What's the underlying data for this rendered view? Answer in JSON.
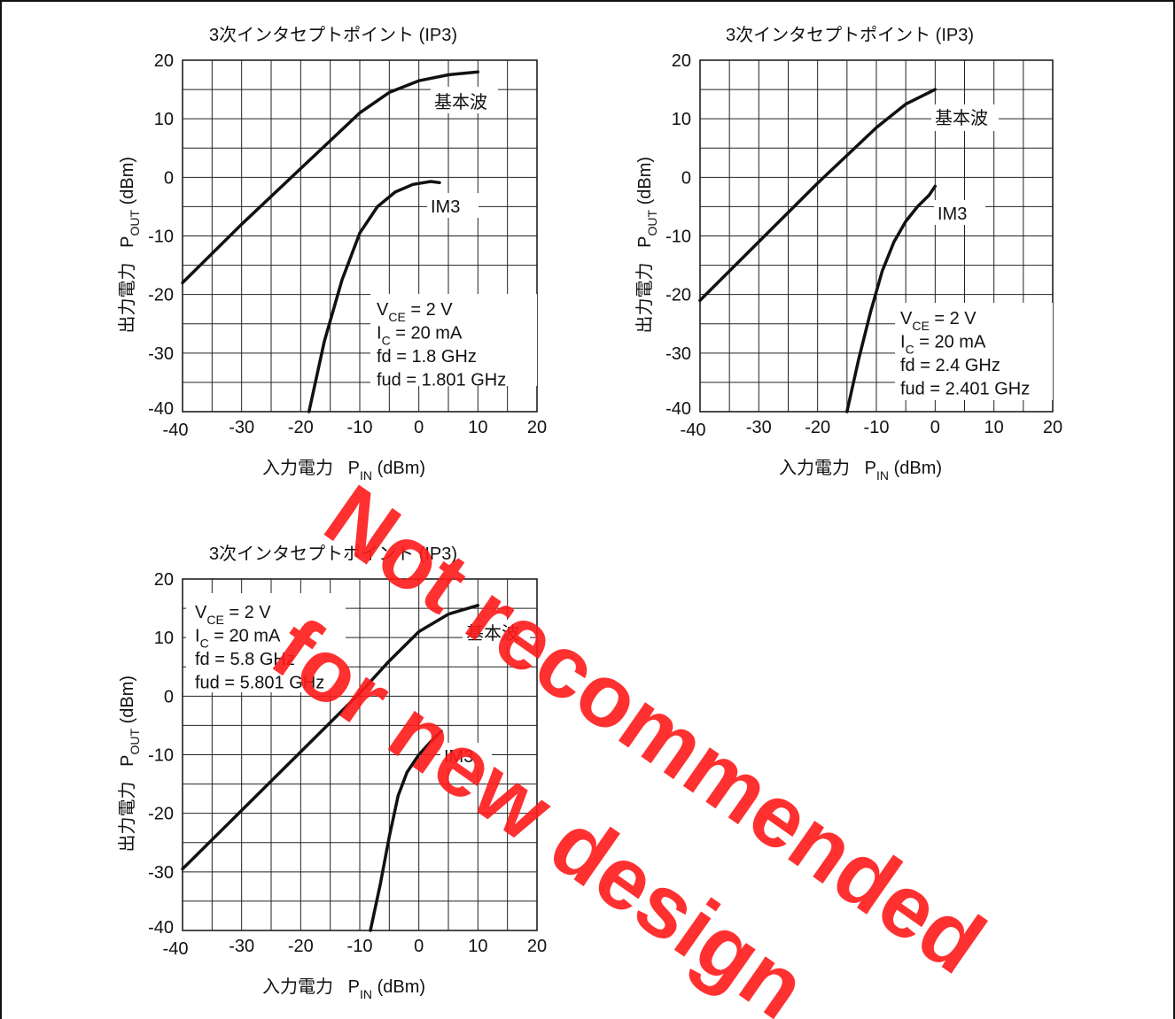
{
  "chart_data": [
    {
      "type": "line",
      "title": "3次インタセプトポイント (IP3)",
      "xlabel_main": "入力電力",
      "xlabel_sym": "P",
      "xlabel_sub": "IN",
      "xlabel_unit": "(dBm)",
      "ylabel_main": "出力電力",
      "ylabel_sym": "P",
      "ylabel_sub": "OUT",
      "ylabel_unit": "(dBm)",
      "xlim": [
        -40,
        20
      ],
      "ylim": [
        -40,
        20
      ],
      "xticks": [
        "-40",
        "-30",
        "-20",
        "-10",
        "0",
        "10",
        "20"
      ],
      "yticks": [
        "20",
        "10",
        "0",
        "-10",
        "-20",
        "-30",
        "-40"
      ],
      "grid": true,
      "series": [
        {
          "name": "基本波",
          "x": [
            -40,
            -30,
            -20,
            -10,
            -5,
            0,
            5,
            10
          ],
          "y": [
            -18,
            -8,
            1.5,
            11,
            14.5,
            16.5,
            17.5,
            18
          ]
        },
        {
          "name": "IM3",
          "x": [
            -18.6,
            -16,
            -13,
            -10,
            -7,
            -4,
            -1,
            2,
            3.5
          ],
          "y": [
            -40,
            -28,
            -17.5,
            -9.5,
            -5,
            -2.5,
            -1.2,
            -0.7,
            -0.9
          ]
        }
      ],
      "annotations": [
        {
          "sym": "V",
          "sub": "CE",
          "rest": " = 2 V"
        },
        {
          "sym": "I",
          "sub": "C",
          "rest": " = 20 mA"
        },
        {
          "sym": "fd = 1.8 GHz",
          "sub": "",
          "rest": ""
        },
        {
          "sym": "fud = 1.801 GHz",
          "sub": "",
          "rest": ""
        }
      ]
    },
    {
      "type": "line",
      "title": "3次インタセプトポイント (IP3)",
      "xlabel_main": "入力電力",
      "xlabel_sym": "P",
      "xlabel_sub": "IN",
      "xlabel_unit": "(dBm)",
      "ylabel_main": "出力電力",
      "ylabel_sym": "P",
      "ylabel_sub": "OUT",
      "ylabel_unit": "(dBm)",
      "xlim": [
        -40,
        20
      ],
      "ylim": [
        -40,
        20
      ],
      "xticks": [
        "-40",
        "-30",
        "-20",
        "-10",
        "0",
        "10",
        "20"
      ],
      "yticks": [
        "20",
        "10",
        "0",
        "-10",
        "-20",
        "-30",
        "-40"
      ],
      "grid": true,
      "series": [
        {
          "name": "基本波",
          "x": [
            -40,
            -30,
            -20,
            -10,
            -5,
            0
          ],
          "y": [
            -21,
            -11,
            -1,
            8.5,
            12.5,
            15
          ]
        },
        {
          "name": "IM3",
          "x": [
            -15,
            -13,
            -11,
            -9,
            -7,
            -5,
            -3,
            -1,
            0
          ],
          "y": [
            -40,
            -31,
            -23,
            -16,
            -11,
            -7.5,
            -5,
            -3,
            -1.5
          ]
        }
      ],
      "annotations": [
        {
          "sym": "V",
          "sub": "CE",
          "rest": " = 2 V"
        },
        {
          "sym": "I",
          "sub": "C",
          "rest": " = 20 mA"
        },
        {
          "sym": "fd = 2.4 GHz",
          "sub": "",
          "rest": ""
        },
        {
          "sym": "fud = 2.401 GHz",
          "sub": "",
          "rest": ""
        }
      ]
    },
    {
      "type": "line",
      "title": "3次インタセプトポイント (IP3)",
      "xlabel_main": "入力電力",
      "xlabel_sym": "P",
      "xlabel_sub": "IN",
      "xlabel_unit": "(dBm)",
      "ylabel_main": "出力電力",
      "ylabel_sym": "P",
      "ylabel_sub": "OUT",
      "ylabel_unit": "(dBm)",
      "xlim": [
        -40,
        20
      ],
      "ylim": [
        -40,
        20
      ],
      "xticks": [
        "-40",
        "-30",
        "-20",
        "-10",
        "0",
        "10",
        "20"
      ],
      "yticks": [
        "20",
        "10",
        "0",
        "-10",
        "-20",
        "-30",
        "-40"
      ],
      "grid": true,
      "series": [
        {
          "name": "基本波",
          "x": [
            -40,
            -30,
            -20,
            -10,
            -5,
            0,
            5,
            10
          ],
          "y": [
            -29.5,
            -19.5,
            -9.5,
            0.5,
            6,
            11,
            14,
            15.5
          ]
        },
        {
          "name": "IM3",
          "x": [
            -8.2,
            -6.5,
            -5,
            -3.5,
            -2,
            0,
            2,
            3.8
          ],
          "y": [
            -40,
            -32,
            -24,
            -17,
            -13,
            -10,
            -7.8,
            -6
          ]
        }
      ],
      "annotations": [
        {
          "sym": "V",
          "sub": "CE",
          "rest": " = 2 V"
        },
        {
          "sym": "I",
          "sub": "C",
          "rest": " = 20 mA"
        },
        {
          "sym": "fd = 5.8 GHz",
          "sub": "",
          "rest": ""
        },
        {
          "sym": "fud = 5.801 GHz",
          "sub": "",
          "rest": ""
        }
      ]
    }
  ],
  "watermark": [
    "Not recommended",
    "for new design"
  ]
}
